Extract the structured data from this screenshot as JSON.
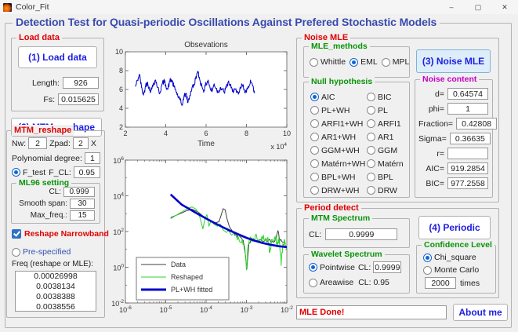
{
  "window": {
    "title": "Color_Fit",
    "controls": {
      "minimize": "–",
      "maximize": "▢",
      "close": "✕"
    }
  },
  "header": {
    "title": "Detection Test for Quasi-periodic Oscillations Against Prefered Stochastic Models"
  },
  "load_data": {
    "legend": "Load data",
    "button": "(1) Load data",
    "length_label": "Length:",
    "length_value": "926",
    "fs_label": "Fs:",
    "fs_value": "0.015625"
  },
  "mtm_reshape_button": "(2) MTM_reshape",
  "mtm_reshape": {
    "legend": "MTM_reshape",
    "nw_label": "Nw:",
    "nw_value": "2",
    "zpad_label": "Zpad:",
    "zpad_value": "2",
    "x_label": "X",
    "poly_label": "Polynomial degree:",
    "poly_value": "1",
    "ftest_label": "F_test",
    "ftest_selected": true,
    "fcl_label": "F_CL:",
    "fcl_value": "0.95",
    "ml96": {
      "legend": "ML96 setting",
      "cl_label": "CL:",
      "cl_value": "0.999",
      "smooth_label": "Smooth span:",
      "smooth_value": "30",
      "maxfreq_label": "Max_freq.:",
      "maxfreq_value": "15"
    },
    "reshape_narrowband_label": "Reshape Narrowband",
    "reshape_narrowband_checked": true,
    "prespecified_label": "Pre-specified",
    "prespecified_selected": false,
    "freq_label": "Freq (reshape or MLE):",
    "freq_list": [
      "0.00026998",
      "0.0038134",
      "0.0038388",
      "0.0038556"
    ]
  },
  "noise_mle": {
    "legend": "Noise MLE",
    "mle_methods": {
      "legend": "MLE_methods",
      "options": [
        "Whittle",
        "EML",
        "MPL"
      ],
      "selected": "EML"
    },
    "noise_mle_button": "(3) Noise MLE",
    "null_hypothesis": {
      "legend": "Null hypothesis",
      "options": [
        "AIC",
        "BIC",
        "PL+WH",
        "PL",
        "ARFI1+WH",
        "ARFI1",
        "AR1+WH",
        "AR1",
        "GGM+WH",
        "GGM",
        "Matérn+WH",
        "Matérn",
        "BPL+WH",
        "BPL",
        "DRW+WH",
        "DRW"
      ],
      "selected": "AIC"
    },
    "noise_content": {
      "legend": "Noise content",
      "rows": [
        {
          "label": "d=",
          "value": "0.64574"
        },
        {
          "label": "phi=",
          "value": "1"
        },
        {
          "label": "Fraction=",
          "value": "0.42808"
        },
        {
          "label": "Sigma=",
          "value": "0.36635"
        },
        {
          "label": "r=",
          "value": ""
        },
        {
          "label": "AIC=",
          "value": "919.2854"
        },
        {
          "label": "BIC=",
          "value": "977.2558"
        }
      ]
    }
  },
  "period_detect": {
    "legend": "Period detect",
    "mtm_spectrum": {
      "legend": "MTM Spectrum",
      "cl_label": "CL:",
      "cl_value": "0.9999"
    },
    "periodic_button": "(4) Periodic",
    "wavelet_spectrum": {
      "legend": "Wavelet Spectrum",
      "selected": "Pointwise",
      "pointwise_label": "Pointwise",
      "pointwise_cl_label": "CL:",
      "pointwise_cl_value": "0.9999",
      "areawise_label": "Areawise",
      "areawise_cl_text": "CL: 0.95"
    },
    "confidence_level": {
      "legend": "Confidence Level",
      "options": [
        "Chi_square",
        "Monte Carlo"
      ],
      "selected": "Chi_square",
      "times_value": "2000",
      "times_label": "times"
    }
  },
  "status": {
    "message": "MLE Done!",
    "about_button": "About me"
  },
  "chart_data": [
    {
      "type": "line",
      "title": "Obsevations",
      "xlabel": "Time",
      "x_scale_base": "x 10",
      "x_scale_exp": "4",
      "xlim": [
        2,
        10
      ],
      "ylim": [
        2,
        10
      ],
      "xticks": [
        2,
        4,
        6,
        8,
        10
      ],
      "yticks": [
        2,
        4,
        6,
        8,
        10
      ],
      "grid": false,
      "note": "x values in units of 1e4",
      "series": [
        {
          "name": "observations",
          "color": "#0000cc",
          "width": 1,
          "jitter": {
            "amp": 0.3,
            "subdiv": 5,
            "seed": 42
          },
          "points": [
            [
              2.5,
              6.3
            ],
            [
              2.6,
              7.0
            ],
            [
              2.7,
              7.6
            ],
            [
              2.8,
              6.2
            ],
            [
              2.9,
              5.4
            ],
            [
              3.0,
              6.4
            ],
            [
              3.1,
              6.8
            ],
            [
              3.2,
              5.9
            ],
            [
              3.3,
              6.0
            ],
            [
              3.4,
              6.7
            ],
            [
              3.5,
              7.0
            ],
            [
              3.6,
              6.2
            ],
            [
              3.7,
              5.6
            ],
            [
              3.8,
              6.4
            ],
            [
              3.9,
              6.9
            ],
            [
              4.0,
              6.5
            ],
            [
              4.1,
              6.0
            ],
            [
              4.2,
              6.9
            ],
            [
              4.3,
              7.0
            ],
            [
              4.4,
              6.3
            ],
            [
              4.5,
              5.9
            ],
            [
              4.6,
              5.3
            ],
            [
              4.7,
              4.9
            ],
            [
              4.8,
              4.3
            ],
            [
              4.9,
              5.2
            ],
            [
              5.0,
              5.6
            ],
            [
              5.1,
              4.6
            ],
            [
              5.2,
              5.4
            ],
            [
              5.3,
              6.2
            ],
            [
              5.4,
              6.4
            ],
            [
              5.5,
              7.4
            ],
            [
              5.6,
              7.8
            ],
            [
              5.7,
              6.9
            ],
            [
              5.8,
              6.3
            ],
            [
              5.9,
              5.9
            ],
            [
              6.0,
              6.6
            ],
            [
              6.1,
              7.0
            ],
            [
              6.2,
              6.1
            ],
            [
              6.3,
              5.8
            ],
            [
              6.4,
              6.6
            ],
            [
              6.5,
              6.1
            ],
            [
              6.6,
              5.7
            ],
            [
              6.7,
              6.2
            ],
            [
              6.8,
              6.0
            ],
            [
              6.9,
              5.7
            ],
            [
              7.0,
              6.2
            ],
            [
              7.1,
              6.8
            ],
            [
              7.2,
              6.4
            ],
            [
              7.3,
              5.8
            ],
            [
              7.4,
              6.1
            ],
            [
              7.5,
              5.7
            ],
            [
              7.6,
              5.5
            ],
            [
              7.7,
              6.1
            ],
            [
              7.8,
              6.5
            ],
            [
              7.9,
              6.0
            ],
            [
              8.0,
              5.7
            ],
            [
              8.1,
              6.3
            ],
            [
              8.2,
              7.0
            ],
            [
              8.3,
              6.4
            ],
            [
              8.4,
              5.6
            ]
          ]
        }
      ]
    },
    {
      "type": "line",
      "log_log": true,
      "xlim": [
        -6,
        -2
      ],
      "ylim": [
        -2,
        6
      ],
      "xtick_exponents": [
        -6,
        -5,
        -4,
        -3,
        -2
      ],
      "ytick_exponents": [
        -2,
        0,
        2,
        4,
        6
      ],
      "note": "log10 power spectrum; coordinates are log10 values",
      "legend": {
        "position": "bottom-left",
        "entries": [
          {
            "label": "Data",
            "color": "#404040",
            "width": 1
          },
          {
            "label": "Reshaped",
            "color": "#2bd42b",
            "width": 1
          },
          {
            "label": "PL+WH fitted",
            "color": "#0000cc",
            "width": 3
          }
        ]
      },
      "series": [
        {
          "name": "Data",
          "color": "#404040",
          "width": 1,
          "jitter": {
            "amp": 0.12,
            "subdiv": 3,
            "seed": 7,
            "from": -3.3
          },
          "points": [
            [
              -4.88,
              2.78
            ],
            [
              -4.7,
              2.95
            ],
            [
              -4.5,
              3.15
            ],
            [
              -4.35,
              3.25
            ],
            [
              -4.2,
              3.1
            ],
            [
              -4.05,
              2.8
            ],
            [
              -3.9,
              2.6
            ],
            [
              -3.78,
              2.48
            ],
            [
              -3.68,
              2.55
            ],
            [
              -3.63,
              2.9
            ],
            [
              -3.58,
              3.28
            ],
            [
              -3.53,
              3.22
            ],
            [
              -3.48,
              2.7
            ],
            [
              -3.42,
              2.25
            ],
            [
              -3.34,
              2.0
            ],
            [
              -3.26,
              1.85
            ],
            [
              -3.16,
              1.7
            ],
            [
              -3.08,
              1.5
            ],
            [
              -3.02,
              0.6
            ],
            [
              -2.99,
              -0.1
            ],
            [
              -2.94,
              1.35
            ],
            [
              -2.86,
              1.6
            ],
            [
              -2.76,
              1.5
            ],
            [
              -2.66,
              1.55
            ],
            [
              -2.56,
              1.45
            ],
            [
              -2.46,
              1.5
            ],
            [
              -2.36,
              1.45
            ],
            [
              -2.28,
              1.55
            ],
            [
              -2.22,
              2.05
            ],
            [
              -2.17,
              1.5
            ],
            [
              -2.1,
              1.4
            ],
            [
              -2.03,
              1.3
            ]
          ]
        },
        {
          "name": "Reshaped",
          "color": "#2bd42b",
          "width": 1,
          "jitter": {
            "amp": 0.25,
            "subdiv": 4,
            "seed": 13,
            "from": -3.3
          },
          "points": [
            [
              -4.88,
              2.72
            ],
            [
              -4.75,
              2.9
            ],
            [
              -4.6,
              3.1
            ],
            [
              -4.45,
              3.3
            ],
            [
              -4.35,
              3.38
            ],
            [
              -4.25,
              3.25
            ],
            [
              -4.18,
              3.0
            ],
            [
              -4.12,
              2.5
            ],
            [
              -4.08,
              2.15
            ],
            [
              -4.03,
              2.7
            ],
            [
              -3.98,
              2.95
            ],
            [
              -3.93,
              2.3
            ],
            [
              -3.88,
              2.6
            ],
            [
              -3.8,
              2.4
            ],
            [
              -3.72,
              2.3
            ],
            [
              -3.65,
              2.42
            ],
            [
              -3.58,
              2.1
            ],
            [
              -3.5,
              1.95
            ],
            [
              -3.44,
              2.05
            ],
            [
              -3.37,
              1.8
            ],
            [
              -3.3,
              1.92
            ],
            [
              -3.2,
              1.7
            ],
            [
              -3.1,
              1.58
            ],
            [
              -3.05,
              1.2
            ],
            [
              -3.0,
              -0.15
            ],
            [
              -2.96,
              1.25
            ],
            [
              -2.9,
              1.7
            ],
            [
              -2.84,
              1.45
            ],
            [
              -2.78,
              1.8
            ],
            [
              -2.7,
              1.55
            ],
            [
              -2.62,
              1.72
            ],
            [
              -2.54,
              1.48
            ],
            [
              -2.47,
              1.68
            ],
            [
              -2.42,
              0.85
            ],
            [
              -2.38,
              1.55
            ],
            [
              -2.3,
              1.7
            ],
            [
              -2.24,
              1.4
            ],
            [
              -2.18,
              1.55
            ],
            [
              -2.14,
              0.1
            ],
            [
              -2.1,
              1.3
            ],
            [
              -2.05,
              1.48
            ],
            [
              -2.0,
              1.15
            ]
          ]
        },
        {
          "name": "PL+WH fitted",
          "color": "#0000cc",
          "width": 2.6,
          "points": [
            [
              -4.88,
              4.08
            ],
            [
              -4.6,
              3.5
            ],
            [
              -4.4,
              3.24
            ],
            [
              -4.2,
              2.98
            ],
            [
              -4.0,
              2.73
            ],
            [
              -3.8,
              2.49
            ],
            [
              -3.6,
              2.26
            ],
            [
              -3.4,
              2.04
            ],
            [
              -3.2,
              1.84
            ],
            [
              -3.0,
              1.65
            ],
            [
              -2.8,
              1.49
            ],
            [
              -2.6,
              1.36
            ],
            [
              -2.4,
              1.26
            ],
            [
              -2.2,
              1.18
            ],
            [
              -2.0,
              1.13
            ]
          ]
        }
      ]
    }
  ]
}
